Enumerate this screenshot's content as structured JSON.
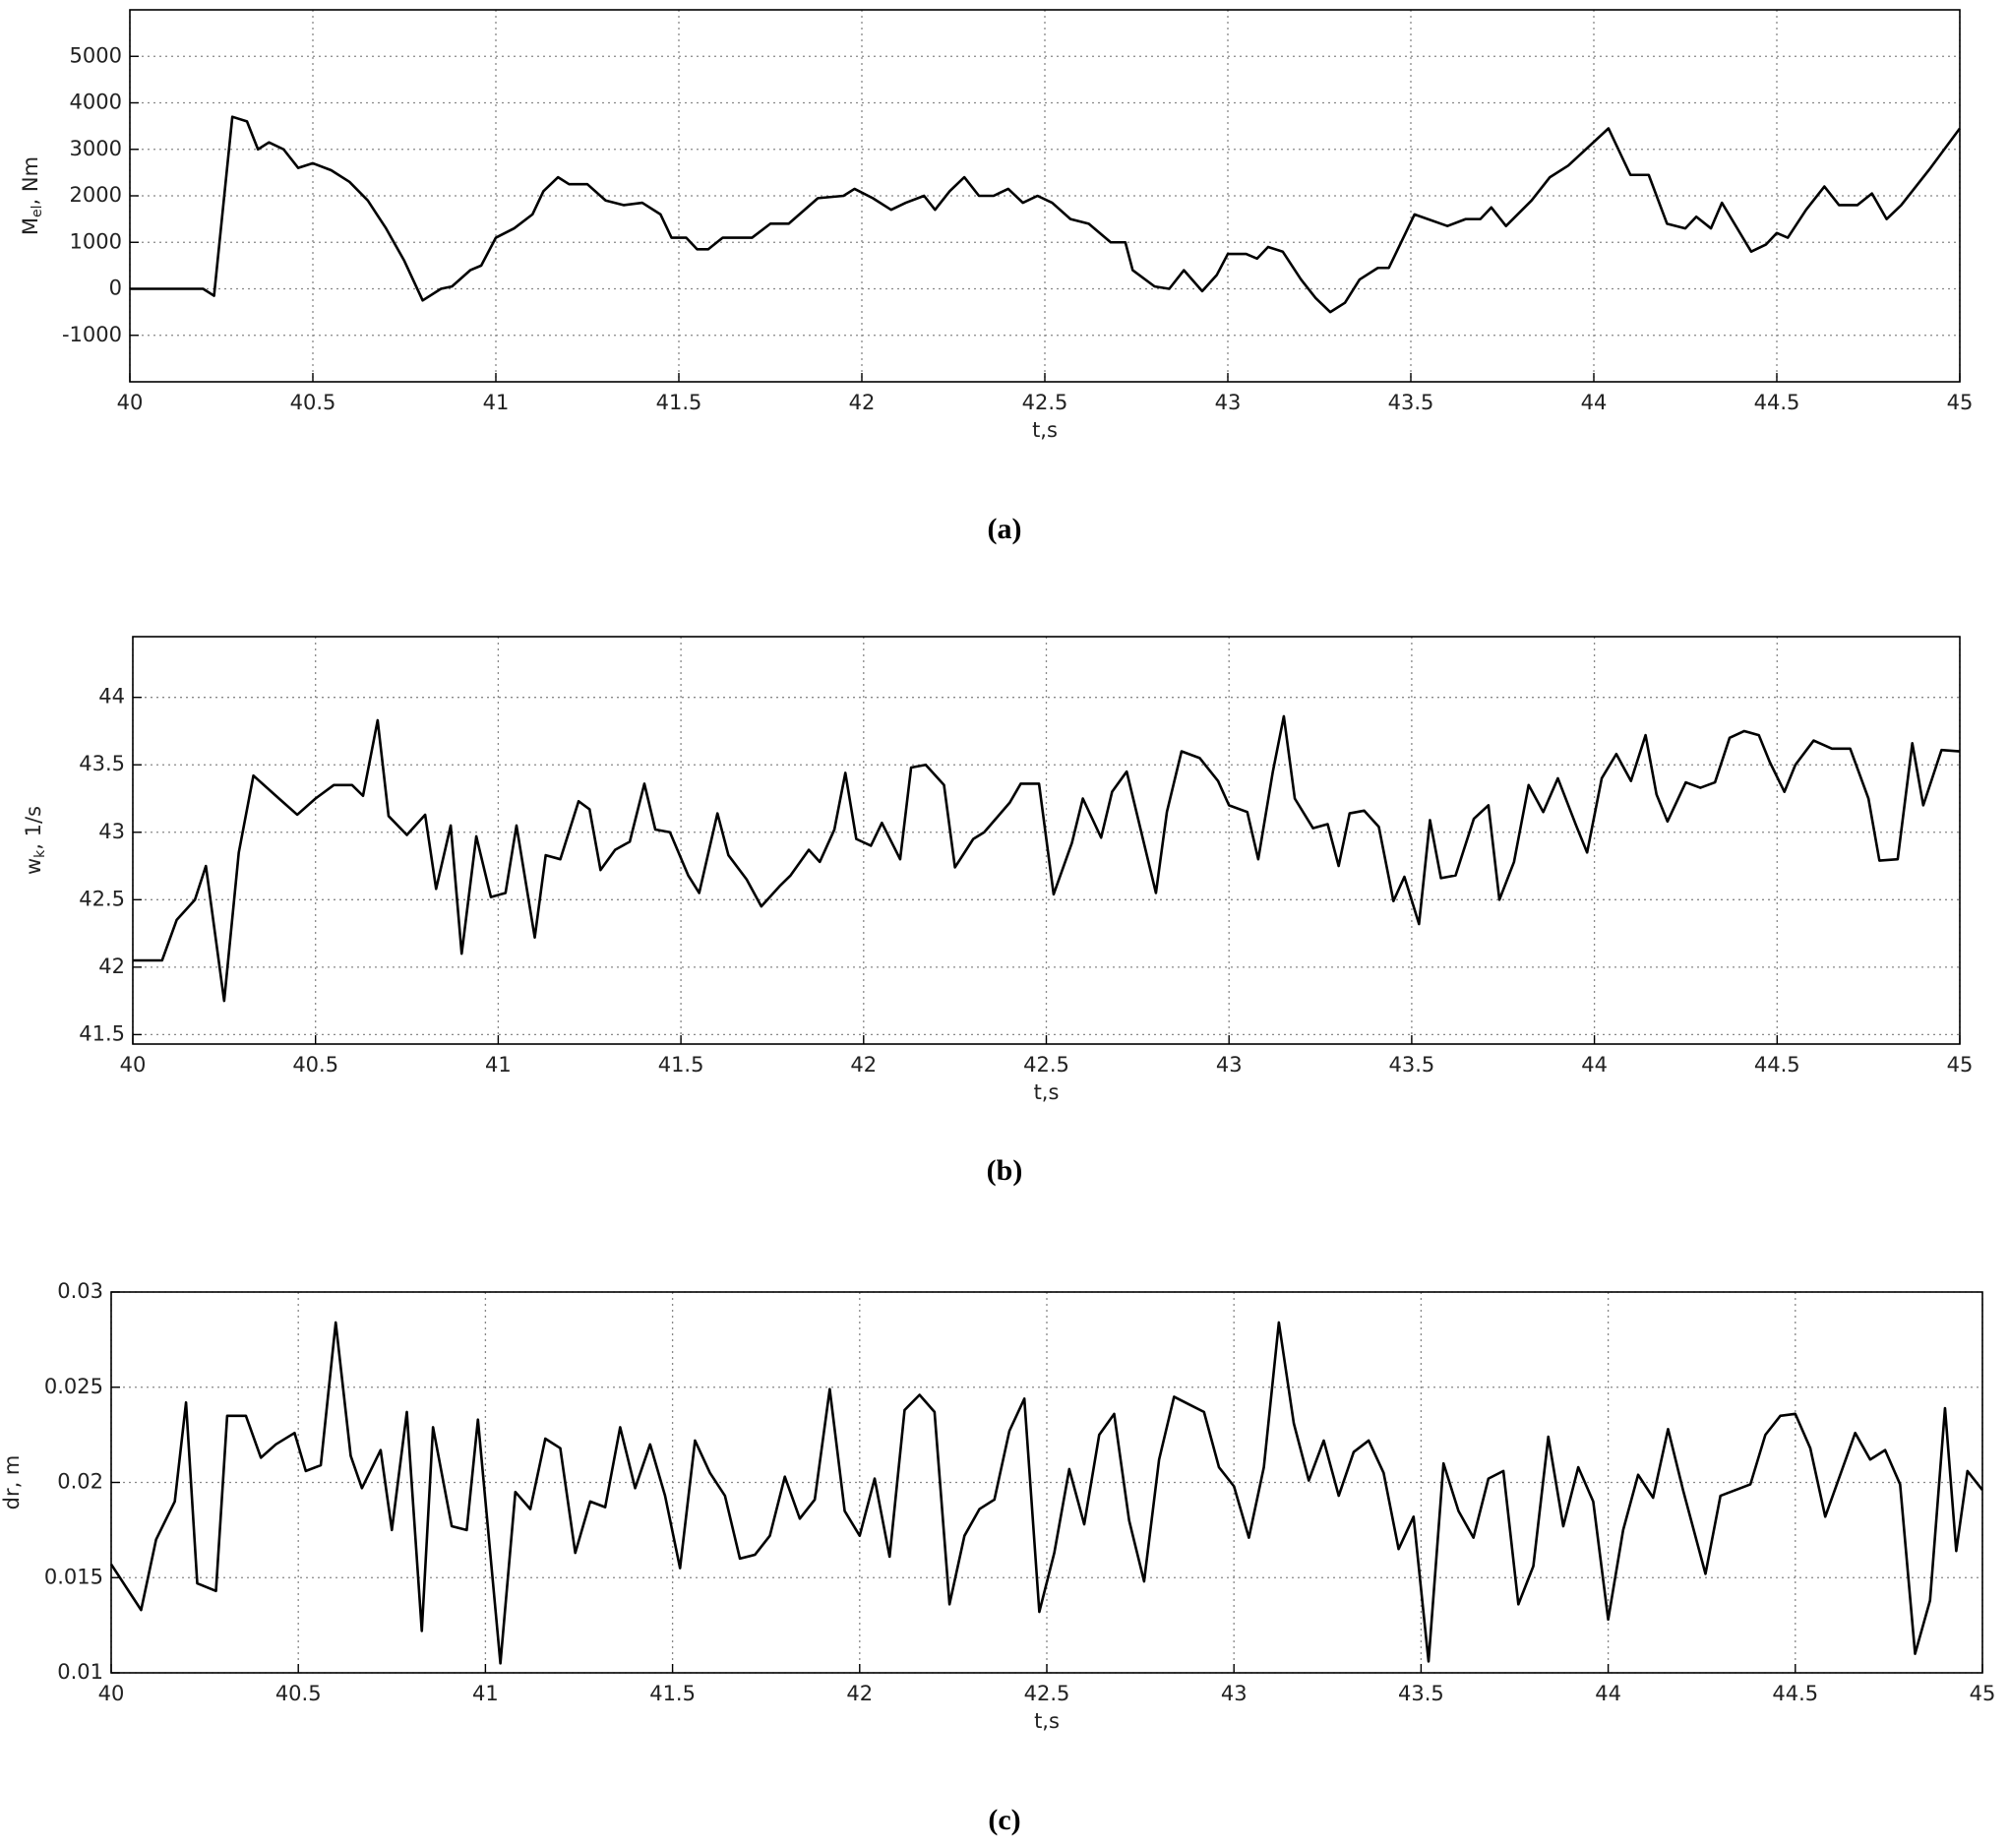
{
  "chart_data": [
    {
      "type": "line",
      "caption": "(a)",
      "xlabel": "t,s",
      "ylabel": {
        "main": "M",
        "sub": "el",
        "rest": ", Nm"
      },
      "xlim": [
        40,
        45
      ],
      "xticks": [
        40,
        40.5,
        41,
        41.5,
        42,
        42.5,
        43,
        43.5,
        44,
        44.5,
        45
      ],
      "ylim": [
        -2000,
        6000
      ],
      "yticks": [
        -1000,
        0,
        1000,
        2000,
        3000,
        4000,
        5000
      ],
      "grid": true,
      "series": [
        {
          "color": "#000000",
          "x": [
            40,
            40.2,
            40.23,
            40.28,
            40.32,
            40.35,
            40.38,
            40.42,
            40.46,
            40.5,
            40.55,
            40.6,
            40.65,
            40.7,
            40.75,
            40.8,
            40.85,
            40.88,
            40.93,
            40.96,
            41,
            41.05,
            41.1,
            41.13,
            41.17,
            41.2,
            41.25,
            41.3,
            41.35,
            41.4,
            41.45,
            41.48,
            41.52,
            41.55,
            41.58,
            41.62,
            41.7,
            41.75,
            41.8,
            41.88,
            41.95,
            41.98,
            42.03,
            42.08,
            42.12,
            42.17,
            42.2,
            42.24,
            42.28,
            42.32,
            42.36,
            42.4,
            42.44,
            42.48,
            42.52,
            42.57,
            42.62,
            42.68,
            42.72,
            42.74,
            42.8,
            42.84,
            42.88,
            42.93,
            42.97,
            43,
            43.05,
            43.08,
            43.11,
            43.15,
            43.2,
            43.24,
            43.28,
            43.32,
            43.36,
            43.41,
            43.44,
            43.51,
            43.6,
            43.65,
            43.69,
            43.72,
            43.76,
            43.83,
            43.88,
            43.93,
            44.04,
            44.1,
            44.15,
            44.2,
            44.25,
            44.28,
            44.32,
            44.35,
            44.43,
            44.47,
            44.5,
            44.53,
            44.58,
            44.63,
            44.67,
            44.72,
            44.76,
            44.8,
            44.84,
            44.92,
            45
          ],
          "values": [
            0,
            0,
            -150,
            3700,
            3600,
            3000,
            3150,
            3000,
            2600,
            2700,
            2550,
            2300,
            1900,
            1300,
            600,
            -250,
            0,
            50,
            400,
            500,
            1100,
            1300,
            1600,
            2100,
            2400,
            2250,
            2250,
            1900,
            1800,
            1850,
            1600,
            1100,
            1100,
            850,
            850,
            1100,
            1100,
            1400,
            1400,
            1950,
            2000,
            2150,
            1950,
            1700,
            1850,
            2000,
            1700,
            2100,
            2400,
            2000,
            2000,
            2150,
            1850,
            2000,
            1850,
            1500,
            1400,
            1000,
            1000,
            400,
            50,
            0,
            400,
            -50,
            300,
            750,
            750,
            650,
            900,
            800,
            200,
            -200,
            -500,
            -300,
            200,
            450,
            450,
            1600,
            1350,
            1500,
            1500,
            1750,
            1350,
            1900,
            2400,
            2650,
            3450,
            2450,
            2450,
            1400,
            1300,
            1550,
            1300,
            1850,
            800,
            950,
            1200,
            1100,
            1700,
            2200,
            1800,
            1800,
            2050,
            1500,
            1800,
            2600,
            3450
          ]
        }
      ]
    },
    {
      "type": "line",
      "caption": "(b)",
      "xlabel": "t,s",
      "ylabel": {
        "main": "w",
        "sub": "k",
        "rest": ", 1/s"
      },
      "xlim": [
        40,
        45
      ],
      "xticks": [
        40,
        40.5,
        41,
        41.5,
        42,
        42.5,
        43,
        43.5,
        44,
        44.5,
        45
      ],
      "ylim": [
        41.43,
        44.45
      ],
      "yticks": [
        41.5,
        42,
        42.5,
        43,
        43.5,
        44
      ],
      "grid": true,
      "series": [
        {
          "color": "#000000",
          "x": [
            40,
            40.08,
            40.12,
            40.17,
            40.2,
            40.25,
            40.29,
            40.33,
            40.4,
            40.45,
            40.5,
            40.55,
            40.6,
            40.63,
            40.67,
            40.7,
            40.75,
            40.8,
            40.83,
            40.87,
            40.9,
            40.94,
            40.98,
            41.02,
            41.05,
            41.1,
            41.13,
            41.17,
            41.22,
            41.25,
            41.28,
            41.32,
            41.36,
            41.4,
            41.43,
            41.47,
            41.52,
            41.55,
            41.6,
            41.63,
            41.68,
            41.72,
            41.77,
            41.8,
            41.85,
            41.88,
            41.92,
            41.95,
            41.98,
            42.02,
            42.05,
            42.1,
            42.13,
            42.17,
            42.22,
            42.25,
            42.3,
            42.33,
            42.4,
            42.43,
            42.48,
            42.52,
            42.57,
            42.6,
            42.65,
            42.68,
            42.72,
            42.8,
            42.83,
            42.87,
            42.92,
            42.97,
            43,
            43.05,
            43.08,
            43.12,
            43.15,
            43.18,
            43.23,
            43.27,
            43.3,
            43.33,
            43.37,
            43.41,
            43.45,
            43.48,
            43.52,
            43.55,
            43.58,
            43.62,
            43.67,
            43.71,
            43.74,
            43.78,
            43.82,
            43.86,
            43.9,
            43.95,
            43.98,
            44.02,
            44.06,
            44.1,
            44.14,
            44.17,
            44.2,
            44.25,
            44.29,
            44.33,
            44.37,
            44.41,
            44.45,
            44.48,
            44.52,
            44.55,
            44.6,
            44.65,
            44.7,
            44.75,
            44.78,
            44.83,
            44.87,
            44.9,
            44.95,
            45
          ],
          "values": [
            42.05,
            42.05,
            42.35,
            42.5,
            42.75,
            41.75,
            42.85,
            43.42,
            43.25,
            43.13,
            43.25,
            43.35,
            43.35,
            43.27,
            43.83,
            43.12,
            42.98,
            43.13,
            42.58,
            43.05,
            42.1,
            42.97,
            42.52,
            42.55,
            43.05,
            42.22,
            42.83,
            42.8,
            43.23,
            43.17,
            42.72,
            42.87,
            42.93,
            43.36,
            43.02,
            43.0,
            42.68,
            42.55,
            43.14,
            42.83,
            42.65,
            42.45,
            42.6,
            42.68,
            42.87,
            42.78,
            43.02,
            43.44,
            42.95,
            42.9,
            43.07,
            42.8,
            43.48,
            43.5,
            43.35,
            42.74,
            42.95,
            43.0,
            43.22,
            43.36,
            43.36,
            42.54,
            42.92,
            43.25,
            42.96,
            43.3,
            43.45,
            42.55,
            43.15,
            43.6,
            43.55,
            43.38,
            43.2,
            43.15,
            42.8,
            43.45,
            43.86,
            43.25,
            43.03,
            43.06,
            42.75,
            43.14,
            43.16,
            43.04,
            42.49,
            42.67,
            42.32,
            43.09,
            42.66,
            42.68,
            43.1,
            43.2,
            42.5,
            42.78,
            43.35,
            43.15,
            43.4,
            43.05,
            42.85,
            43.4,
            43.58,
            43.38,
            43.72,
            43.28,
            43.08,
            43.37,
            43.33,
            43.37,
            43.7,
            43.75,
            43.72,
            43.52,
            43.3,
            43.5,
            43.68,
            43.62,
            43.62,
            43.25,
            42.79,
            42.8,
            43.66,
            43.2,
            43.61,
            43.6
          ]
        }
      ]
    },
    {
      "type": "line",
      "caption": "(c)",
      "xlabel": "t,s",
      "ylabel": {
        "main": "dr, m"
      },
      "xlim": [
        40,
        45
      ],
      "xticks": [
        40,
        40.5,
        41,
        41.5,
        42,
        42.5,
        43,
        43.5,
        44,
        44.5,
        45
      ],
      "ylim": [
        0.01,
        0.03
      ],
      "yticks": [
        0.01,
        0.015,
        0.02,
        0.025,
        0.03
      ],
      "grid": true,
      "series": [
        {
          "color": "#000000",
          "x": [
            40,
            40.08,
            40.12,
            40.17,
            40.2,
            40.23,
            40.28,
            40.31,
            40.36,
            40.4,
            40.44,
            40.49,
            40.52,
            40.56,
            40.6,
            40.64,
            40.67,
            40.72,
            40.75,
            40.79,
            40.83,
            40.86,
            40.91,
            40.95,
            40.98,
            41.04,
            41.08,
            41.12,
            41.16,
            41.2,
            41.24,
            41.28,
            41.32,
            41.36,
            41.4,
            41.44,
            41.48,
            41.52,
            41.56,
            41.6,
            41.64,
            41.68,
            41.72,
            41.76,
            41.8,
            41.84,
            41.88,
            41.92,
            41.96,
            42,
            42.04,
            42.08,
            42.12,
            42.16,
            42.2,
            42.24,
            42.28,
            42.32,
            42.36,
            42.4,
            42.44,
            42.48,
            42.52,
            42.56,
            42.6,
            42.64,
            42.68,
            42.72,
            42.76,
            42.8,
            42.84,
            42.88,
            42.92,
            42.96,
            43,
            43.04,
            43.08,
            43.12,
            43.16,
            43.2,
            43.24,
            43.28,
            43.32,
            43.36,
            43.4,
            43.44,
            43.48,
            43.52,
            43.56,
            43.6,
            43.64,
            43.68,
            43.72,
            43.76,
            43.8,
            43.84,
            43.88,
            43.92,
            43.96,
            44,
            44.04,
            44.08,
            44.12,
            44.16,
            44.2,
            44.26,
            44.3,
            44.38,
            44.42,
            44.46,
            44.5,
            44.54,
            44.58,
            44.66,
            44.7,
            44.74,
            44.78,
            44.82,
            44.86,
            44.9,
            44.93,
            44.96,
            45
          ],
          "values": [
            0.0157,
            0.0133,
            0.017,
            0.019,
            0.0242,
            0.0147,
            0.0143,
            0.0235,
            0.0235,
            0.0213,
            0.022,
            0.0226,
            0.0206,
            0.0209,
            0.0284,
            0.0214,
            0.0197,
            0.0217,
            0.0175,
            0.0237,
            0.0122,
            0.0229,
            0.0177,
            0.0175,
            0.0233,
            0.0105,
            0.0195,
            0.0186,
            0.0223,
            0.0218,
            0.0163,
            0.019,
            0.0187,
            0.0229,
            0.0197,
            0.022,
            0.0193,
            0.0155,
            0.0222,
            0.0205,
            0.0193,
            0.016,
            0.0162,
            0.0172,
            0.0203,
            0.0181,
            0.0191,
            0.0249,
            0.0185,
            0.0172,
            0.0202,
            0.0161,
            0.0238,
            0.0246,
            0.0237,
            0.0136,
            0.0172,
            0.0186,
            0.0191,
            0.0227,
            0.0244,
            0.0132,
            0.0163,
            0.0207,
            0.0178,
            0.0225,
            0.0236,
            0.018,
            0.0148,
            0.0212,
            0.0245,
            0.0241,
            0.0237,
            0.0208,
            0.0198,
            0.0171,
            0.0208,
            0.0284,
            0.0231,
            0.0201,
            0.0222,
            0.0193,
            0.0216,
            0.0222,
            0.0205,
            0.0165,
            0.0182,
            0.0106,
            0.021,
            0.0185,
            0.0171,
            0.0202,
            0.0206,
            0.0136,
            0.0156,
            0.0224,
            0.0177,
            0.0208,
            0.019,
            0.0128,
            0.0175,
            0.0204,
            0.0192,
            0.0228,
            0.0196,
            0.0152,
            0.0193,
            0.0199,
            0.0225,
            0.0235,
            0.0236,
            0.0218,
            0.0182,
            0.0226,
            0.0212,
            0.0217,
            0.0199,
            0.011,
            0.0138,
            0.0239,
            0.0164,
            0.0206,
            0.0196
          ]
        }
      ]
    }
  ]
}
